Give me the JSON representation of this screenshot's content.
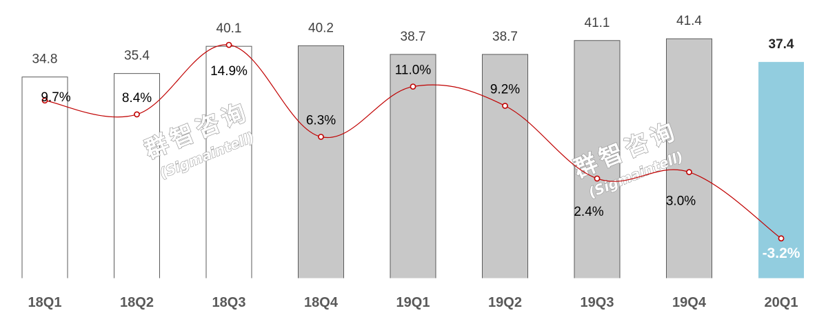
{
  "chart_data": {
    "type": "bar",
    "categories": [
      "18Q1",
      "18Q2",
      "18Q3",
      "18Q4",
      "19Q1",
      "19Q2",
      "19Q3",
      "19Q4",
      "20Q1"
    ],
    "series": [
      {
        "values": [
          34.8,
          35.4,
          40.1,
          40.2,
          38.7,
          38.7,
          41.1,
          41.4,
          37.4
        ],
        "value_labels": [
          "34.8",
          "35.4",
          "40.1",
          "40.2",
          "38.7",
          "38.7",
          "41.1",
          "41.4",
          "37.4"
        ]
      },
      {
        "type": "line",
        "values": [
          9.7,
          8.4,
          14.9,
          6.3,
          11.0,
          9.2,
          2.4,
          3.0,
          -3.2
        ],
        "value_labels": [
          "9.7%",
          "8.4%",
          "14.9%",
          "6.3%",
          "11.0%",
          "9.2%",
          "2.4%",
          "3.0%",
          "-3.2%"
        ]
      }
    ],
    "bar_styles": [
      "outline",
      "outline",
      "outline",
      "gray",
      "gray",
      "gray",
      "gray",
      "gray",
      "highlight"
    ],
    "colors": {
      "outline_fill": "#ffffff",
      "outline_stroke": "#595959",
      "gray_fill": "#c8c8c8",
      "highlight_fill": "#92cddf",
      "line": "#c00000",
      "marker_fill": "#ffffff"
    },
    "grid": false,
    "legend": "none"
  },
  "watermarks": [
    {
      "cn": "群智咨询",
      "en": "(Sigmaintell)"
    },
    {
      "cn": "群智咨询",
      "en": "(Sigmaintell)"
    }
  ]
}
